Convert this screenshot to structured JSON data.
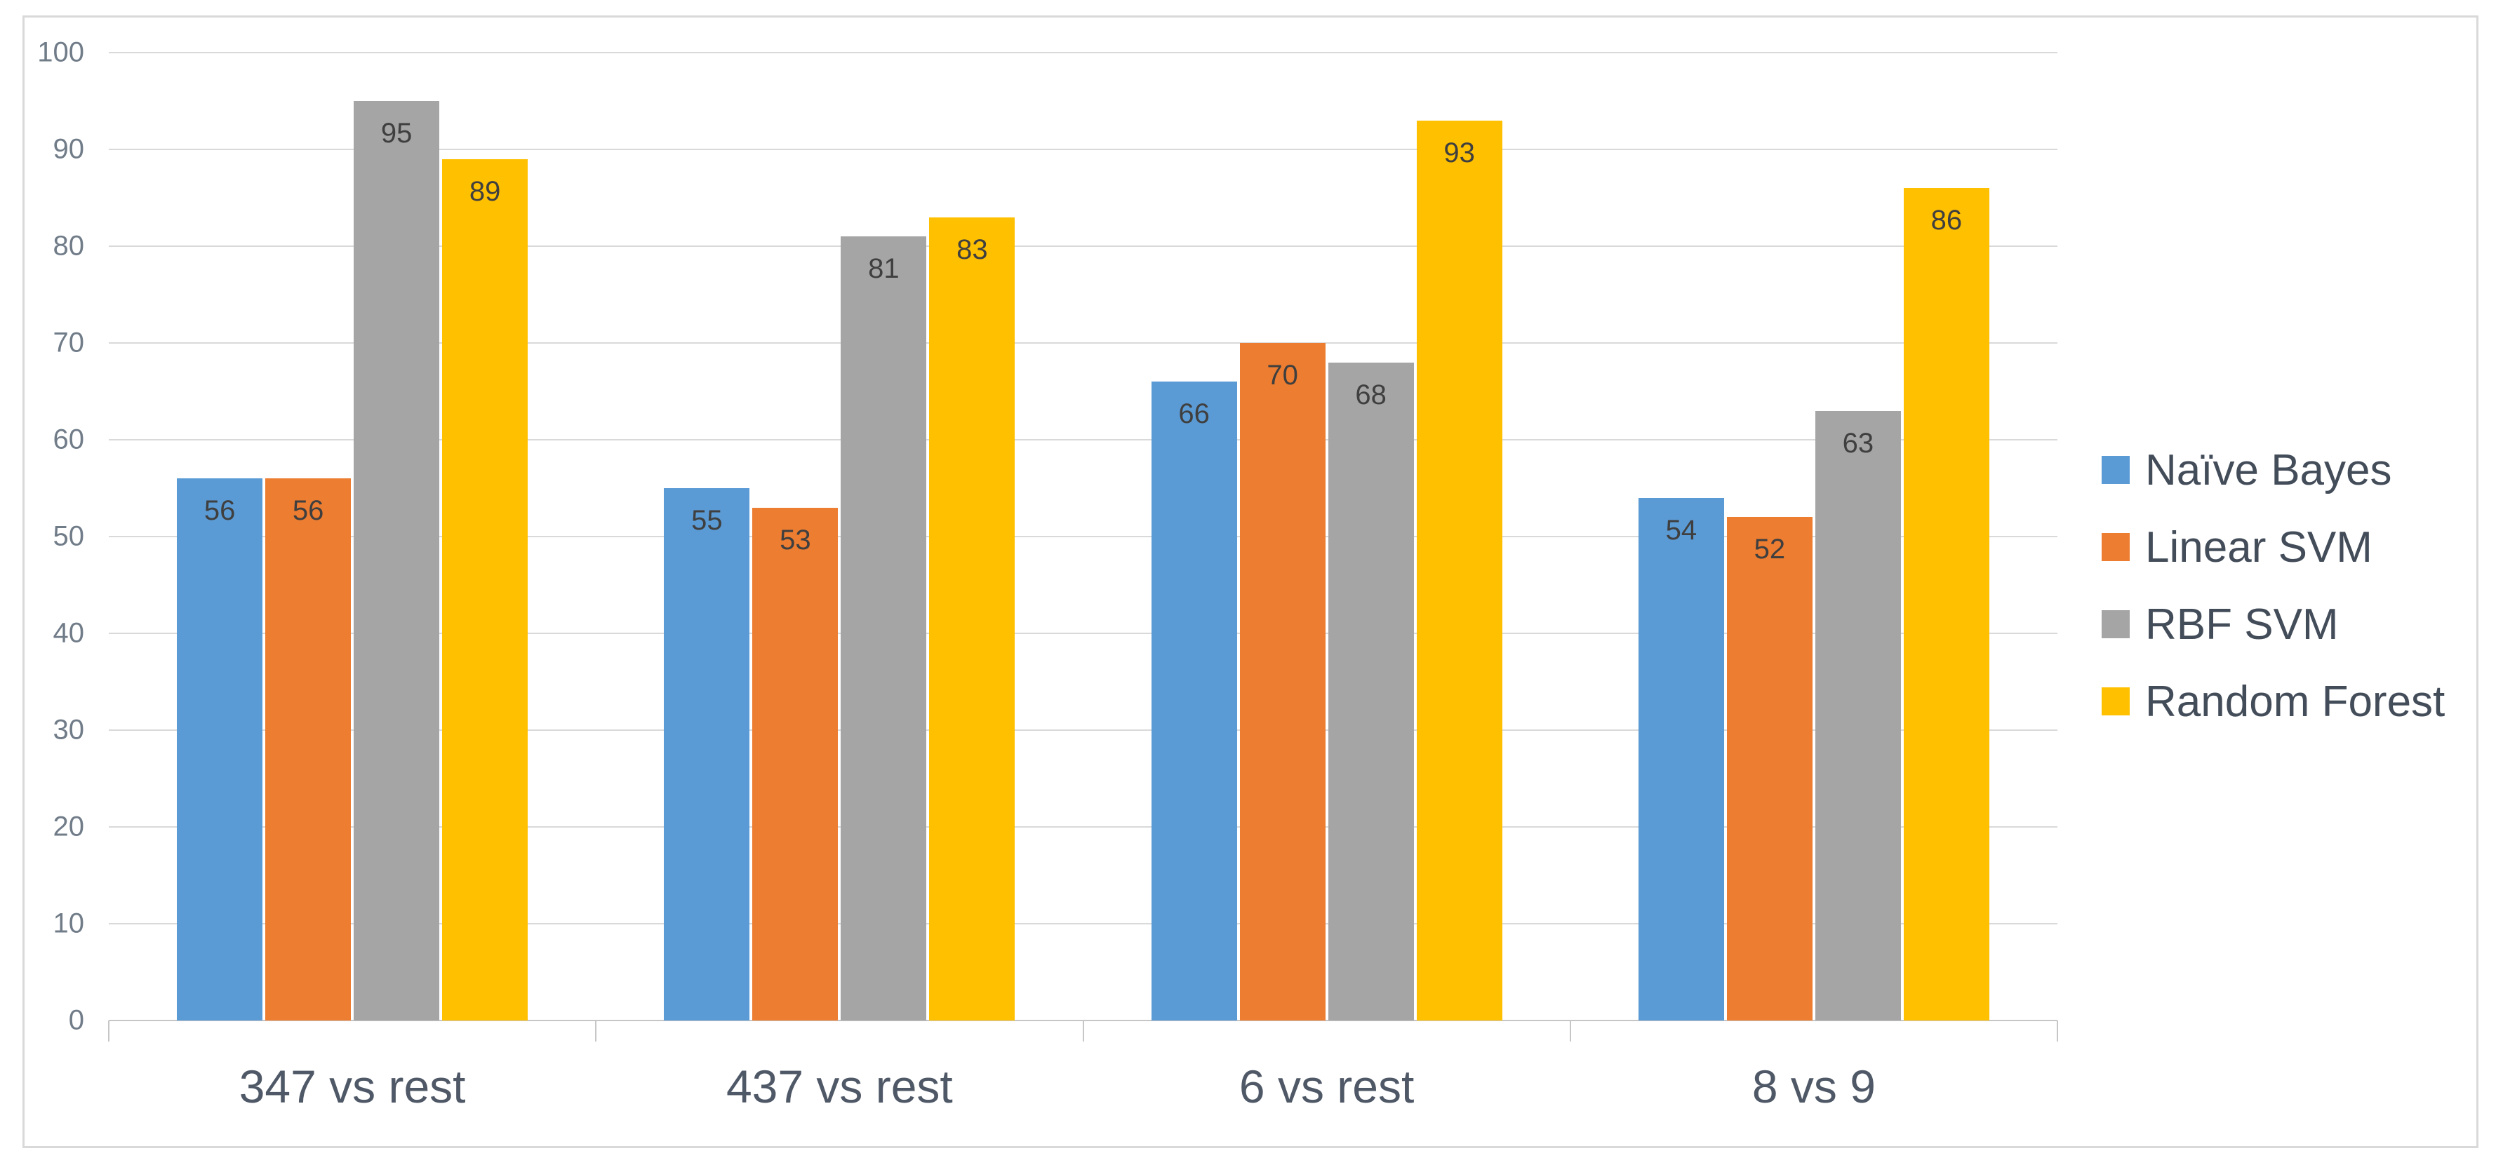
{
  "chart_data": {
    "type": "bar",
    "title": "",
    "categories": [
      "347 vs rest",
      "437 vs rest",
      "6 vs rest",
      "8 vs 9"
    ],
    "series": [
      {
        "name": "Naïve Bayes",
        "color": "#5b9bd5",
        "values": [
          56,
          55,
          66,
          54
        ]
      },
      {
        "name": "Linear SVM",
        "color": "#ed7d31",
        "values": [
          56,
          53,
          70,
          52
        ]
      },
      {
        "name": "RBF SVM",
        "color": "#a5a5a5",
        "values": [
          95,
          81,
          68,
          63
        ]
      },
      {
        "name": "Random Forest",
        "color": "#ffc000",
        "values": [
          89,
          83,
          93,
          86
        ]
      }
    ],
    "ylim": [
      0,
      100
    ],
    "y_tick_labels": [
      "0",
      "10",
      "20",
      "30",
      "40",
      "50",
      "60",
      "70",
      "80",
      "90",
      "100"
    ],
    "grid": true,
    "data_labels": true,
    "legend_position": "right",
    "colors": {
      "gridline": "#d9d9d9",
      "axis_line": "#c6c6c6",
      "y_tick_text": "#717c89",
      "category_text": "#4f5866",
      "value_label_text": "#3f3f3f",
      "legend_text": "#434c59",
      "frame_border": "#d9d9d9",
      "background": "#ffffff"
    }
  }
}
